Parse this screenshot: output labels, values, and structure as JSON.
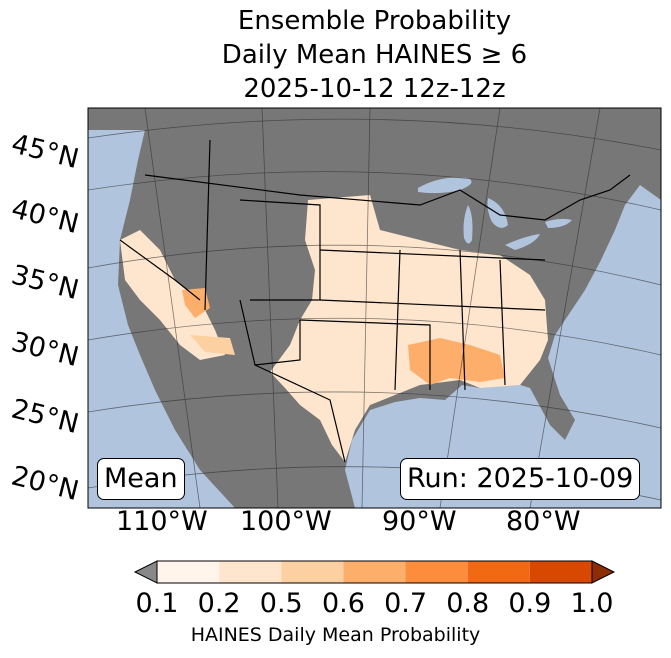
{
  "title": {
    "line1": "Ensemble Probability",
    "line2": "Daily Mean HAINES ≥ 6",
    "line3": "2025-10-12 12z-12z"
  },
  "map": {
    "lat_labels": [
      "45°N",
      "40°N",
      "35°N",
      "30°N",
      "25°N",
      "20°N"
    ],
    "lon_labels": [
      "110°W",
      "100°W",
      "90°W",
      "80°W"
    ],
    "stat_label": "Mean",
    "run_label": "Run: 2025-10-09",
    "colors": {
      "ocean": "#b0c4de",
      "land": "#777777"
    }
  },
  "colorbar": {
    "ticks": [
      "0.1",
      "0.2",
      "0.5",
      "0.6",
      "0.7",
      "0.8",
      "0.9",
      "1.0"
    ],
    "colors": [
      "#fff5eb",
      "#fee6ce",
      "#fdd0a2",
      "#fdae6b",
      "#fd8d3c",
      "#f16913",
      "#d94801"
    ],
    "under_color": "#888888",
    "over_color": "#8c2d04",
    "label": "HAINES Daily Mean Probability"
  }
}
